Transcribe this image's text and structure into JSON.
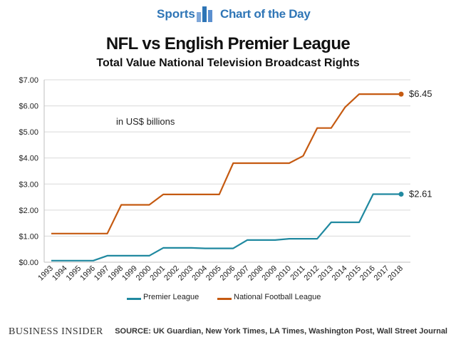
{
  "header": {
    "brand_left": "Sports",
    "brand_right": "Chart of the Day"
  },
  "chart_data": {
    "type": "line",
    "title": "NFL vs English Premier League",
    "subtitle": "Total Value National Television Broadcast Rights",
    "annotation": "in US$ billions",
    "x": [
      "1993",
      "1994",
      "1995",
      "1996",
      "1997",
      "1998",
      "1999",
      "2000",
      "2001",
      "2002",
      "2003",
      "2004",
      "2005",
      "2006",
      "2007",
      "2008",
      "2009",
      "2010",
      "2011",
      "2012",
      "2013",
      "2014",
      "2015",
      "2016",
      "2017",
      "2018"
    ],
    "ylim": [
      0,
      7
    ],
    "yticks": [
      "$0.00",
      "$1.00",
      "$2.00",
      "$3.00",
      "$4.00",
      "$5.00",
      "$6.00",
      "$7.00"
    ],
    "grid": true,
    "legend_position": "bottom",
    "series": [
      {
        "name": "Premier League",
        "color": "#2089a0",
        "values": [
          0.06,
          0.06,
          0.06,
          0.06,
          0.25,
          0.25,
          0.25,
          0.25,
          0.55,
          0.55,
          0.55,
          0.53,
          0.53,
          0.53,
          0.85,
          0.85,
          0.85,
          0.9,
          0.9,
          0.9,
          1.53,
          1.53,
          1.53,
          2.61,
          2.61,
          2.61
        ],
        "end_label": "$2.61"
      },
      {
        "name": "National Football League",
        "color": "#c55a11",
        "values": [
          1.1,
          1.1,
          1.1,
          1.1,
          1.1,
          2.2,
          2.2,
          2.2,
          2.6,
          2.6,
          2.6,
          2.6,
          2.6,
          3.8,
          3.8,
          3.8,
          3.8,
          3.8,
          4.08,
          5.15,
          5.15,
          5.95,
          6.45,
          6.45,
          6.45,
          6.45
        ],
        "end_label": "$6.45"
      }
    ]
  },
  "footer": {
    "logo": "BUSINESS INSIDER",
    "source": "SOURCE: UK Guardian, New York Times, LA Times, Washington Post, Wall Street Journal"
  }
}
